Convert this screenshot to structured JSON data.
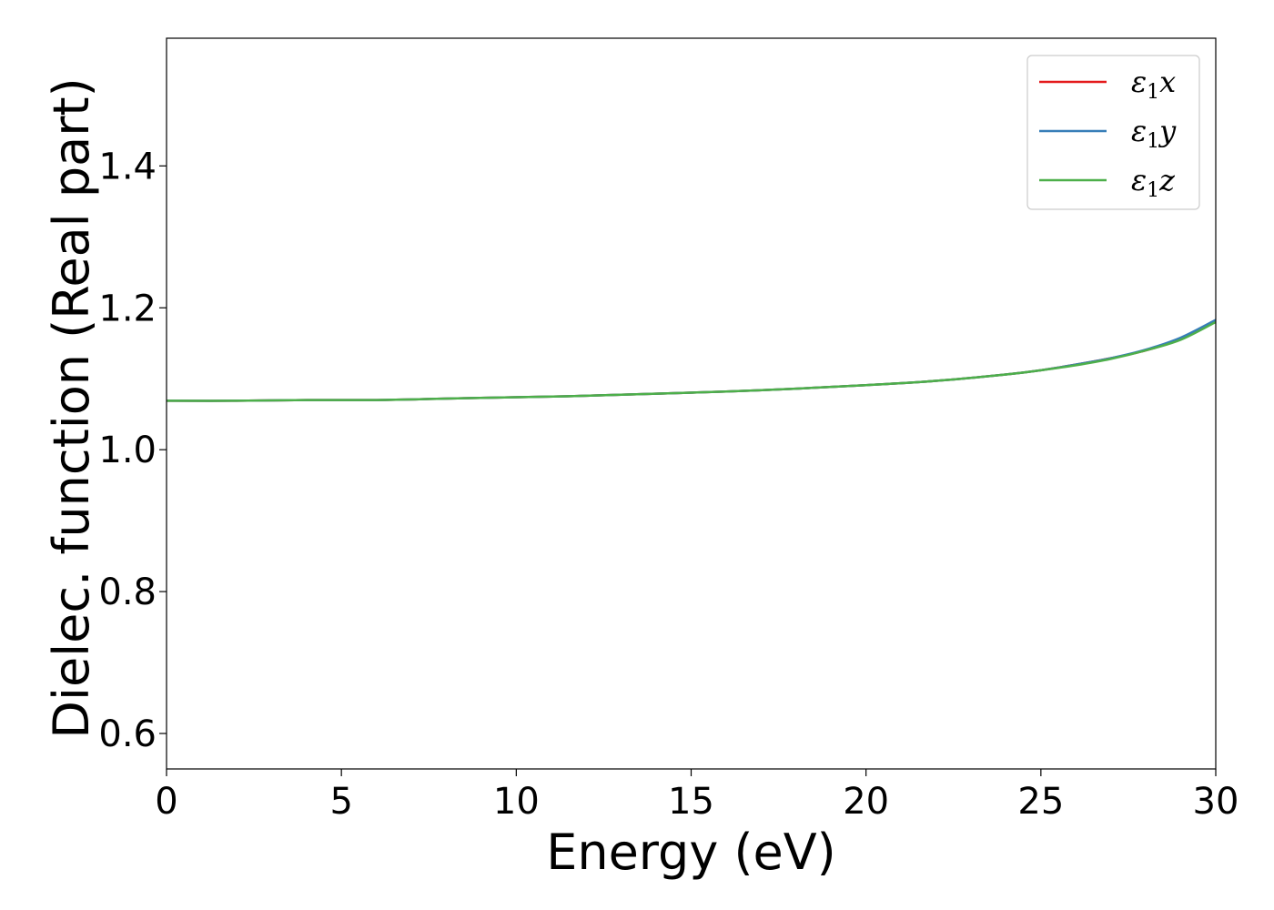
{
  "chart_data": {
    "type": "line",
    "xlabel": "Energy (eV)",
    "ylabel": "Dielec. function (Real part)",
    "xlim": [
      0,
      30
    ],
    "ylim": [
      0.55,
      1.58
    ],
    "xticks": [
      0,
      5,
      10,
      15,
      20,
      25,
      30
    ],
    "yticks": [
      0.6,
      0.8,
      1.0,
      1.2,
      1.4
    ],
    "xtick_labels": [
      "0",
      "5",
      "10",
      "15",
      "20",
      "25",
      "30"
    ],
    "ytick_labels": [
      "0.6",
      "0.8",
      "1.0",
      "1.2",
      "1.4"
    ],
    "grid": false,
    "legend_position": "top-right",
    "x": [
      0,
      2,
      4,
      6,
      8,
      10,
      12,
      14,
      16,
      18,
      20,
      22,
      24,
      25,
      26,
      27,
      28,
      29,
      30
    ],
    "series": [
      {
        "name": "ε1x",
        "legend_base": "ε",
        "legend_sub": "1",
        "legend_var": "x",
        "color": "#e41a1c",
        "values": [
          1.069,
          1.069,
          1.07,
          1.07,
          1.072,
          1.074,
          1.076,
          1.079,
          1.082,
          1.086,
          1.091,
          1.097,
          1.106,
          1.112,
          1.12,
          1.129,
          1.14,
          1.156,
          1.181
        ]
      },
      {
        "name": "ε1y",
        "legend_base": "ε",
        "legend_sub": "1",
        "legend_var": "y",
        "color": "#377eb8",
        "values": [
          1.069,
          1.069,
          1.07,
          1.07,
          1.072,
          1.074,
          1.076,
          1.079,
          1.082,
          1.086,
          1.091,
          1.097,
          1.106,
          1.112,
          1.12,
          1.129,
          1.141,
          1.158,
          1.183
        ]
      },
      {
        "name": "ε1z",
        "legend_base": "ε",
        "legend_sub": "1",
        "legend_var": "z",
        "color": "#4daf4a",
        "values": [
          1.069,
          1.069,
          1.07,
          1.07,
          1.072,
          1.074,
          1.076,
          1.079,
          1.082,
          1.086,
          1.091,
          1.097,
          1.106,
          1.112,
          1.119,
          1.128,
          1.14,
          1.155,
          1.18
        ]
      }
    ]
  }
}
